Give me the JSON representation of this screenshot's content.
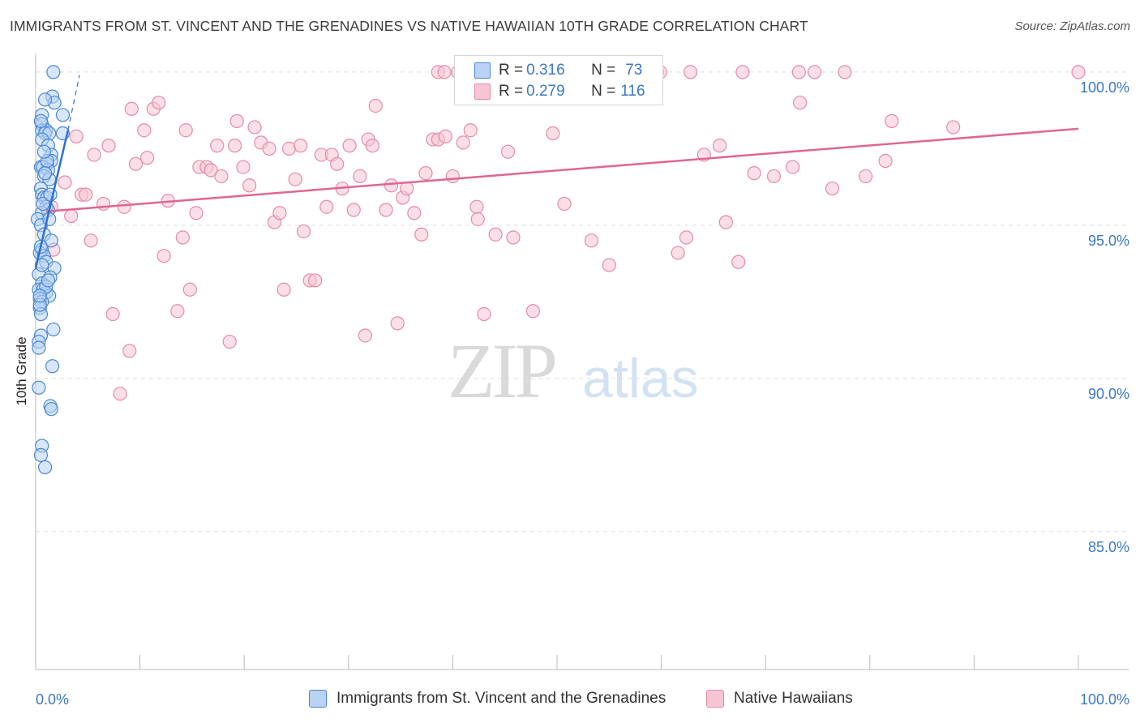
{
  "title": "IMMIGRANTS FROM ST. VINCENT AND THE GRENADINES VS NATIVE HAWAIIAN 10TH GRADE CORRELATION CHART",
  "source": "Source: ZipAtlas.com",
  "watermark": {
    "zip": "ZIP",
    "atlas": "atlas"
  },
  "legend": {
    "rows": [
      {
        "r_label": "R = ",
        "r_value": "0.316",
        "n_label": "N = ",
        "n_value": "73"
      },
      {
        "r_label": "R = ",
        "r_value": "0.279",
        "n_label": "N = ",
        "n_value": "116"
      }
    ]
  },
  "colors": {
    "blue_fill": "#b8d3f3",
    "blue_stroke": "#4a86d4",
    "blue_line": "#2f6fd1",
    "pink_fill": "#f7c4d4",
    "pink_stroke": "#e58aa8",
    "pink_line": "#e0668f",
    "tick_text": "#3a78c9",
    "grid": "#dddddd"
  },
  "chart_data": {
    "type": "scatter",
    "title": "IMMIGRANTS FROM ST. VINCENT AND THE GRENADINES VS NATIVE HAWAIIAN 10TH GRADE CORRELATION CHART",
    "xlabel": "",
    "ylabel": "10th Grade",
    "xlim": [
      0,
      100
    ],
    "ylim": [
      80.5,
      100.5
    ],
    "x_ticks": [
      0,
      10,
      20,
      30,
      40,
      50,
      60,
      70,
      80,
      90,
      100
    ],
    "x_tick_labels": {
      "0": "0.0%",
      "100": "100.0%"
    },
    "y_ticks": [
      100,
      95,
      90,
      85
    ],
    "y_tick_labels": [
      "100.0%",
      "95.0%",
      "90.0%",
      "85.0%"
    ],
    "grid": true,
    "legend_position": "top-center",
    "series": [
      {
        "name": "Immigrants from St. Vincent and the Grenadines",
        "color": "blue",
        "R": 0.316,
        "N": 73,
        "trend": {
          "x": [
            0.0,
            3.1
          ],
          "y": [
            93.6,
            98.1
          ],
          "dashed_ext": {
            "x": [
              3.1,
              4.2
            ],
            "y": [
              98.1,
              99.9
            ]
          }
        },
        "points": [
          [
            1.7,
            100.0
          ],
          [
            1.6,
            99.2
          ],
          [
            1.8,
            99.0
          ],
          [
            0.6,
            98.6
          ],
          [
            2.6,
            98.6
          ],
          [
            0.6,
            98.3
          ],
          [
            0.6,
            98.1
          ],
          [
            1.0,
            98.1
          ],
          [
            0.9,
            98.0
          ],
          [
            1.3,
            98.0
          ],
          [
            0.6,
            97.8
          ],
          [
            2.6,
            98.0
          ],
          [
            1.2,
            97.6
          ],
          [
            1.5,
            97.3
          ],
          [
            1.5,
            97.1
          ],
          [
            1.1,
            97.0
          ],
          [
            0.5,
            96.9
          ],
          [
            0.7,
            96.9
          ],
          [
            1.2,
            96.8
          ],
          [
            0.8,
            96.6
          ],
          [
            1.3,
            96.5
          ],
          [
            0.5,
            96.2
          ],
          [
            0.6,
            96.0
          ],
          [
            0.8,
            95.9
          ],
          [
            1.1,
            95.9
          ],
          [
            1.0,
            95.6
          ],
          [
            1.2,
            95.5
          ],
          [
            0.6,
            95.4
          ],
          [
            0.2,
            95.2
          ],
          [
            0.5,
            95.0
          ],
          [
            0.8,
            94.7
          ],
          [
            1.5,
            94.5
          ],
          [
            0.6,
            94.2
          ],
          [
            0.4,
            94.1
          ],
          [
            0.8,
            94.0
          ],
          [
            1.0,
            93.8
          ],
          [
            1.8,
            93.6
          ],
          [
            0.3,
            93.4
          ],
          [
            1.4,
            93.3
          ],
          [
            0.6,
            93.1
          ],
          [
            0.3,
            92.9
          ],
          [
            1.0,
            92.8
          ],
          [
            0.7,
            92.9
          ],
          [
            1.3,
            92.7
          ],
          [
            0.4,
            92.6
          ],
          [
            0.6,
            92.5
          ],
          [
            0.4,
            92.3
          ],
          [
            0.5,
            92.1
          ],
          [
            1.7,
            91.6
          ],
          [
            0.5,
            91.4
          ],
          [
            0.3,
            91.2
          ],
          [
            0.3,
            91.0
          ],
          [
            1.6,
            90.4
          ],
          [
            0.3,
            89.7
          ],
          [
            1.4,
            89.1
          ],
          [
            1.5,
            89.0
          ],
          [
            0.6,
            87.8
          ],
          [
            0.5,
            87.5
          ],
          [
            0.9,
            87.1
          ],
          [
            1.1,
            97.1
          ],
          [
            0.9,
            96.7
          ],
          [
            0.7,
            95.7
          ],
          [
            0.5,
            94.3
          ],
          [
            1.0,
            93.0
          ],
          [
            0.4,
            92.4
          ],
          [
            1.2,
            93.2
          ],
          [
            0.8,
            97.4
          ],
          [
            1.4,
            96.0
          ],
          [
            0.9,
            99.1
          ],
          [
            0.5,
            98.4
          ],
          [
            1.3,
            95.2
          ],
          [
            0.6,
            93.7
          ],
          [
            0.4,
            92.7
          ]
        ]
      },
      {
        "name": "Native Hawaiians",
        "color": "pink",
        "R": 0.279,
        "N": 116,
        "trend": {
          "x": [
            1.0,
            100.0
          ],
          "y": [
            95.45,
            98.15
          ]
        },
        "points": [
          [
            1.5,
            95.6
          ],
          [
            1.7,
            94.2
          ],
          [
            2.8,
            96.4
          ],
          [
            3.4,
            95.3
          ],
          [
            3.9,
            97.9
          ],
          [
            4.4,
            96.0
          ],
          [
            4.8,
            96.0
          ],
          [
            5.3,
            94.5
          ],
          [
            5.6,
            97.3
          ],
          [
            6.5,
            95.7
          ],
          [
            7.0,
            97.6
          ],
          [
            7.4,
            92.1
          ],
          [
            8.1,
            89.5
          ],
          [
            8.5,
            95.6
          ],
          [
            9.0,
            90.9
          ],
          [
            9.2,
            98.8
          ],
          [
            9.6,
            97.0
          ],
          [
            10.4,
            98.1
          ],
          [
            10.7,
            97.2
          ],
          [
            11.3,
            98.8
          ],
          [
            11.8,
            99.0
          ],
          [
            12.3,
            94.0
          ],
          [
            12.7,
            95.8
          ],
          [
            13.6,
            92.2
          ],
          [
            14.1,
            94.6
          ],
          [
            14.4,
            98.1
          ],
          [
            14.8,
            92.9
          ],
          [
            15.4,
            95.4
          ],
          [
            15.7,
            96.9
          ],
          [
            16.4,
            96.9
          ],
          [
            16.8,
            96.8
          ],
          [
            17.4,
            97.6
          ],
          [
            17.8,
            96.6
          ],
          [
            18.6,
            91.2
          ],
          [
            19.1,
            97.6
          ],
          [
            19.3,
            98.4
          ],
          [
            19.9,
            96.9
          ],
          [
            20.5,
            96.3
          ],
          [
            21.0,
            98.2
          ],
          [
            21.6,
            97.7
          ],
          [
            22.4,
            97.5
          ],
          [
            22.9,
            95.1
          ],
          [
            23.4,
            95.4
          ],
          [
            23.8,
            92.9
          ],
          [
            24.3,
            97.5
          ],
          [
            24.9,
            96.5
          ],
          [
            25.4,
            97.6
          ],
          [
            25.7,
            94.8
          ],
          [
            26.3,
            93.2
          ],
          [
            26.8,
            93.2
          ],
          [
            27.4,
            97.3
          ],
          [
            27.9,
            95.6
          ],
          [
            28.4,
            97.3
          ],
          [
            28.9,
            97.0
          ],
          [
            29.4,
            96.2
          ],
          [
            30.1,
            97.6
          ],
          [
            30.5,
            95.5
          ],
          [
            31.1,
            96.6
          ],
          [
            31.6,
            91.4
          ],
          [
            31.9,
            97.8
          ],
          [
            32.3,
            97.6
          ],
          [
            32.6,
            98.9
          ],
          [
            33.6,
            95.5
          ],
          [
            34.1,
            96.3
          ],
          [
            34.7,
            91.8
          ],
          [
            35.2,
            95.9
          ],
          [
            35.6,
            96.2
          ],
          [
            36.3,
            95.4
          ],
          [
            37.0,
            94.7
          ],
          [
            37.4,
            96.7
          ],
          [
            38.1,
            97.8
          ],
          [
            38.6,
            97.8
          ],
          [
            39.3,
            97.9
          ],
          [
            40.0,
            96.6
          ],
          [
            40.5,
            100.0
          ],
          [
            41.0,
            97.7
          ],
          [
            41.7,
            98.1
          ],
          [
            42.3,
            95.6
          ],
          [
            42.4,
            95.2
          ],
          [
            43.0,
            92.1
          ],
          [
            44.1,
            94.7
          ],
          [
            45.3,
            97.4
          ],
          [
            45.8,
            94.6
          ],
          [
            47.7,
            92.2
          ],
          [
            47.9,
            100.0
          ],
          [
            49.6,
            98.0
          ],
          [
            50.7,
            95.7
          ],
          [
            53.3,
            94.5
          ],
          [
            55.0,
            93.7
          ],
          [
            59.6,
            100.0
          ],
          [
            59.9,
            100.0
          ],
          [
            61.6,
            94.1
          ],
          [
            62.4,
            94.6
          ],
          [
            62.8,
            100.0
          ],
          [
            64.1,
            97.3
          ],
          [
            65.6,
            97.6
          ],
          [
            66.2,
            95.1
          ],
          [
            67.4,
            93.8
          ],
          [
            67.8,
            100.0
          ],
          [
            68.9,
            96.7
          ],
          [
            70.8,
            96.6
          ],
          [
            72.6,
            96.9
          ],
          [
            73.2,
            100.0
          ],
          [
            73.3,
            99.0
          ],
          [
            76.4,
            96.2
          ],
          [
            77.6,
            100.0
          ],
          [
            79.6,
            96.6
          ],
          [
            81.5,
            97.1
          ],
          [
            82.1,
            98.4
          ],
          [
            88.0,
            98.2
          ],
          [
            100.0,
            100.0
          ],
          [
            42.6,
            100.0
          ],
          [
            59.1,
            100.0
          ],
          [
            38.6,
            100.0
          ],
          [
            39.2,
            100.0
          ],
          [
            74.7,
            100.0
          ]
        ]
      }
    ]
  },
  "bottom_legend": [
    {
      "label": "Immigrants from St. Vincent and the Grenadines"
    },
    {
      "label": "Native Hawaiians"
    }
  ]
}
